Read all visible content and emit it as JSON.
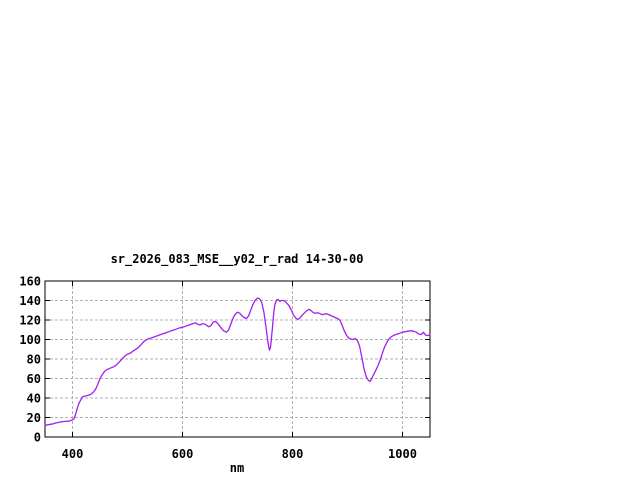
{
  "window": {
    "background": "#ffffff"
  },
  "chart_data": {
    "type": "line",
    "title": "sr_2026_083_MSE__y02_r_rad 14-30-00",
    "xlabel": "nm",
    "ylabel": "",
    "xlim": [
      350,
      1050
    ],
    "ylim": [
      0,
      160
    ],
    "x_ticks": [
      400,
      600,
      800,
      1000
    ],
    "y_ticks": [
      0,
      20,
      40,
      60,
      80,
      100,
      120,
      140,
      160
    ],
    "grid": true,
    "legend_position": "none",
    "line_color": "#a020f0",
    "grid_color": "#b0b0b0",
    "border_color": "#000000",
    "series": [
      {
        "name": "sr_2026_083_MSE__y02_r_rad 14-30-00",
        "points": [
          [
            350,
            12
          ],
          [
            355,
            12.5
          ],
          [
            360,
            13
          ],
          [
            365,
            13.5
          ],
          [
            370,
            14.5
          ],
          [
            375,
            15
          ],
          [
            380,
            15.5
          ],
          [
            385,
            16
          ],
          [
            390,
            16
          ],
          [
            395,
            16.5
          ],
          [
            400,
            17.5
          ],
          [
            403,
            19
          ],
          [
            406,
            24
          ],
          [
            409,
            30
          ],
          [
            412,
            35
          ],
          [
            415,
            38
          ],
          [
            418,
            41
          ],
          [
            422,
            42
          ],
          [
            426,
            42.5
          ],
          [
            430,
            43
          ],
          [
            434,
            44
          ],
          [
            438,
            46
          ],
          [
            442,
            49
          ],
          [
            446,
            54
          ],
          [
            450,
            60
          ],
          [
            454,
            64
          ],
          [
            458,
            67
          ],
          [
            462,
            69
          ],
          [
            466,
            70
          ],
          [
            470,
            71
          ],
          [
            475,
            72
          ],
          [
            480,
            74
          ],
          [
            485,
            77
          ],
          [
            490,
            80
          ],
          [
            495,
            83
          ],
          [
            500,
            85
          ],
          [
            505,
            86
          ],
          [
            510,
            88
          ],
          [
            515,
            90
          ],
          [
            520,
            92
          ],
          [
            525,
            95
          ],
          [
            530,
            98
          ],
          [
            535,
            100
          ],
          [
            540,
            101
          ],
          [
            545,
            102
          ],
          [
            550,
            103
          ],
          [
            555,
            104
          ],
          [
            560,
            105
          ],
          [
            565,
            106
          ],
          [
            570,
            107
          ],
          [
            575,
            108
          ],
          [
            580,
            109
          ],
          [
            585,
            110
          ],
          [
            590,
            111
          ],
          [
            595,
            112
          ],
          [
            600,
            112.5
          ],
          [
            605,
            113.5
          ],
          [
            610,
            114.5
          ],
          [
            615,
            115.5
          ],
          [
            620,
            116.5
          ],
          [
            624,
            117
          ],
          [
            628,
            115.5
          ],
          [
            632,
            115
          ],
          [
            636,
            116
          ],
          [
            640,
            116
          ],
          [
            644,
            114.5
          ],
          [
            648,
            113
          ],
          [
            652,
            114.5
          ],
          [
            656,
            118
          ],
          [
            660,
            118.5
          ],
          [
            664,
            116.5
          ],
          [
            668,
            113.5
          ],
          [
            672,
            110.5
          ],
          [
            676,
            108.5
          ],
          [
            680,
            107.5
          ],
          [
            684,
            110
          ],
          [
            688,
            116
          ],
          [
            692,
            122
          ],
          [
            696,
            126
          ],
          [
            700,
            128
          ],
          [
            704,
            127
          ],
          [
            708,
            124.5
          ],
          [
            712,
            122.5
          ],
          [
            716,
            121.5
          ],
          [
            720,
            124
          ],
          [
            724,
            130
          ],
          [
            728,
            136
          ],
          [
            732,
            140
          ],
          [
            736,
            142.5
          ],
          [
            740,
            142
          ],
          [
            744,
            138
          ],
          [
            748,
            128
          ],
          [
            752,
            112
          ],
          [
            755,
            98
          ],
          [
            758,
            89
          ],
          [
            760,
            92
          ],
          [
            762,
            103
          ],
          [
            764,
            115
          ],
          [
            766,
            128
          ],
          [
            768,
            136
          ],
          [
            771,
            140.5
          ],
          [
            774,
            141
          ],
          [
            777,
            139
          ],
          [
            780,
            140
          ],
          [
            783,
            140
          ],
          [
            786,
            139.5
          ],
          [
            790,
            137
          ],
          [
            794,
            134.5
          ],
          [
            798,
            130
          ],
          [
            802,
            125
          ],
          [
            806,
            122
          ],
          [
            810,
            120.5
          ],
          [
            814,
            122.5
          ],
          [
            818,
            125
          ],
          [
            822,
            127.5
          ],
          [
            826,
            129.5
          ],
          [
            830,
            131
          ],
          [
            834,
            129.5
          ],
          [
            838,
            127.5
          ],
          [
            842,
            127
          ],
          [
            846,
            127.5
          ],
          [
            850,
            126.5
          ],
          [
            854,
            125.5
          ],
          [
            858,
            126
          ],
          [
            862,
            126.5
          ],
          [
            866,
            125.5
          ],
          [
            870,
            124.5
          ],
          [
            874,
            123.5
          ],
          [
            878,
            122.5
          ],
          [
            882,
            121.5
          ],
          [
            886,
            120
          ],
          [
            890,
            115
          ],
          [
            894,
            109
          ],
          [
            898,
            104.5
          ],
          [
            902,
            101.5
          ],
          [
            906,
            100.5
          ],
          [
            910,
            100
          ],
          [
            914,
            101
          ],
          [
            918,
            99
          ],
          [
            922,
            93
          ],
          [
            926,
            82
          ],
          [
            930,
            70
          ],
          [
            934,
            62
          ],
          [
            938,
            58
          ],
          [
            941,
            57
          ],
          [
            944,
            60
          ],
          [
            948,
            64.5
          ],
          [
            952,
            69
          ],
          [
            956,
            74
          ],
          [
            960,
            80
          ],
          [
            964,
            87
          ],
          [
            968,
            93
          ],
          [
            972,
            97.5
          ],
          [
            976,
            101
          ],
          [
            980,
            103
          ],
          [
            985,
            104.5
          ],
          [
            990,
            105.5
          ],
          [
            995,
            106.5
          ],
          [
            1000,
            107.5
          ],
          [
            1005,
            108
          ],
          [
            1010,
            108.5
          ],
          [
            1015,
            109
          ],
          [
            1020,
            108.5
          ],
          [
            1025,
            107.5
          ],
          [
            1030,
            105.5
          ],
          [
            1034,
            105
          ],
          [
            1038,
            107.5
          ],
          [
            1042,
            104.5
          ],
          [
            1046,
            104
          ],
          [
            1050,
            105
          ]
        ]
      }
    ]
  }
}
